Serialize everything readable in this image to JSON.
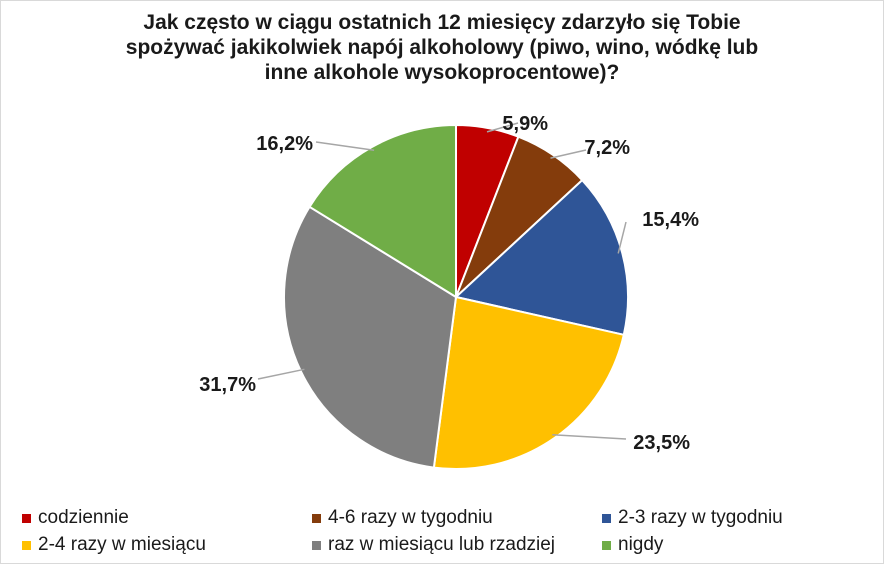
{
  "chart_data": {
    "type": "pie",
    "title_lines": [
      "Jak często w ciągu ostatnich 12 miesięcy zdarzyło się Tobie",
      "spożywać jakikolwiek napój alkoholowy (piwo, wino, wódkę lub",
      "inne alkohole wysokoprocentowe)?"
    ],
    "categories": [
      "codziennie",
      "4-6 razy w tygodniu",
      "2-3 razy w tygodniu",
      "2-4 razy w miesiącu",
      "raz w miesiącu lub rzadziej",
      "nigdy"
    ],
    "values": [
      5.9,
      7.2,
      15.4,
      23.5,
      31.7,
      16.2
    ],
    "labels": [
      "5,9%",
      "7,2%",
      "15,4%",
      "23,5%",
      "31,7%",
      "16,2%"
    ],
    "colors": [
      "#c00000",
      "#843c0c",
      "#2f5597",
      "#ffc000",
      "#7f7f7f",
      "#70ad47"
    ],
    "legend_position": "bottom"
  }
}
